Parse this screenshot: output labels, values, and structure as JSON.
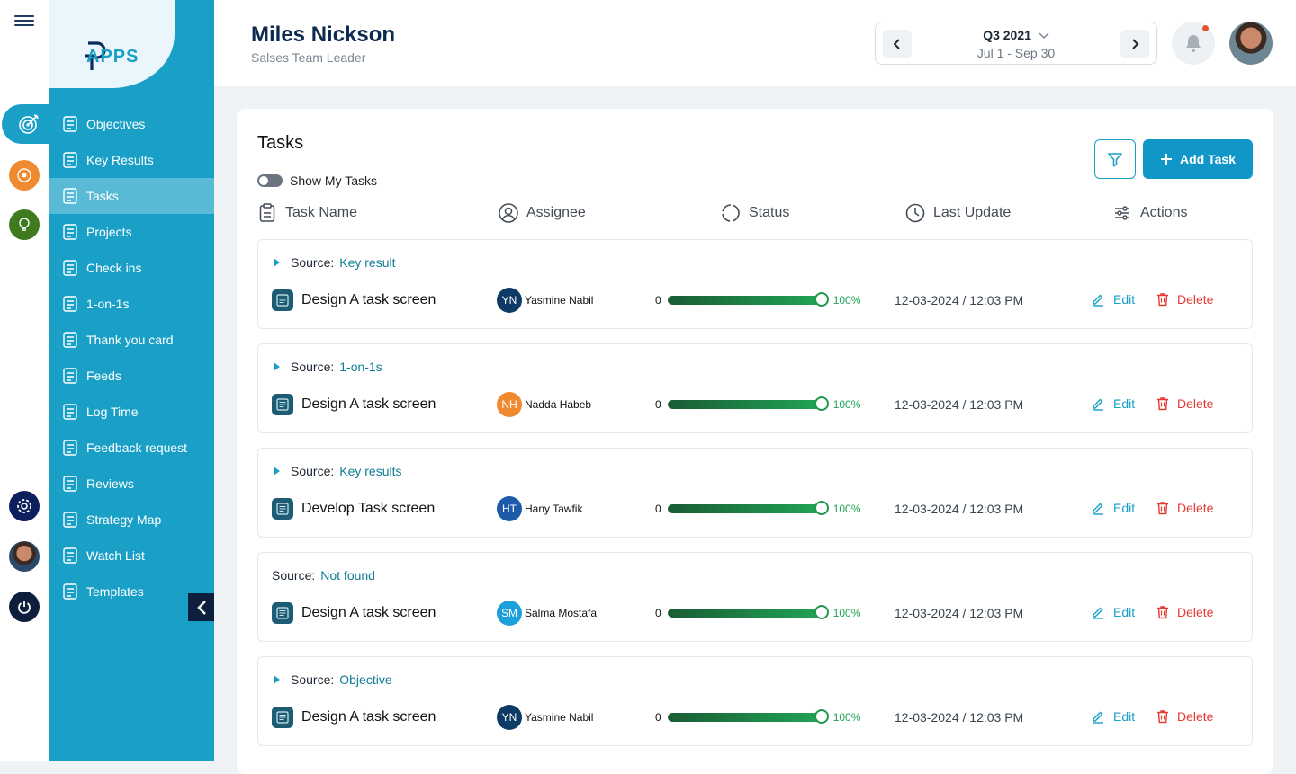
{
  "user": {
    "name": "Miles Nickson",
    "role": "Salses Team Leader"
  },
  "period": {
    "quarter": "Q3 2021",
    "range": "Jul 1 - Sep 30"
  },
  "brand": {
    "logo_text": "APPS",
    "accent": "#1aa0c7",
    "dark": "#0d2a4f"
  },
  "sidebar": {
    "items": [
      {
        "label": "Objectives",
        "icon": "clipboard-icon"
      },
      {
        "label": "Key Results",
        "icon": "key-results-icon"
      },
      {
        "label": "Tasks",
        "icon": "tasks-icon",
        "active": true
      },
      {
        "label": "Projects",
        "icon": "projects-icon"
      },
      {
        "label": "Check ins",
        "icon": "checkin-icon"
      },
      {
        "label": "1-on-1s",
        "icon": "chat-icon"
      },
      {
        "label": "Thank you card",
        "icon": "award-icon"
      },
      {
        "label": "Feeds",
        "icon": "feeds-icon"
      },
      {
        "label": "Log Time",
        "icon": "log-time-icon"
      },
      {
        "label": "Feedback request",
        "icon": "feedback-icon"
      },
      {
        "label": "Reviews",
        "icon": "reviews-icon"
      },
      {
        "label": "Strategy Map",
        "icon": "strategy-icon"
      },
      {
        "label": "Watch List",
        "icon": "eye-icon"
      },
      {
        "label": "Templates",
        "icon": "templates-icon"
      }
    ]
  },
  "tasks": {
    "title": "Tasks",
    "show_my_tasks": "Show My Tasks",
    "add_task": "Add Task",
    "columns": [
      "Task Name",
      "Assignee",
      "Status",
      "Last Update",
      "Actions"
    ],
    "source_label": "Source:",
    "edit_label": "Edit",
    "delete_label": "Delete",
    "progress_start": "0",
    "rows": [
      {
        "source": "Key result",
        "expandable": true,
        "name": "Design A task screen",
        "initials": "YN",
        "assignee": "Yasmine Nabil",
        "avatar_color": "#0d3b66",
        "progress": 100,
        "progress_label": "100%",
        "updated": "12-03-2024 / 12:03 PM"
      },
      {
        "source": "1-on-1s",
        "expandable": true,
        "name": "Design A task screen",
        "initials": "NH",
        "assignee": "Nadda Habeb",
        "avatar_color": "#f08a30",
        "progress": 100,
        "progress_label": "100%",
        "updated": "12-03-2024 / 12:03 PM"
      },
      {
        "source": "Key results",
        "expandable": true,
        "name": "Develop Task screen",
        "initials": "HT",
        "assignee": "Hany Tawfik",
        "avatar_color": "#1d5aa8",
        "progress": 100,
        "progress_label": "100%",
        "updated": "12-03-2024 / 12:03 PM"
      },
      {
        "source": "Not found",
        "expandable": false,
        "name": "Design A task screen",
        "initials": "SM",
        "assignee": "Salma Mostafa",
        "avatar_color": "#1ba0dc",
        "progress": 100,
        "progress_label": "100%",
        "updated": "12-03-2024 / 12:03 PM"
      },
      {
        "source": "Objective",
        "expandable": true,
        "name": "Design A task screen",
        "initials": "YN",
        "assignee": "Yasmine Nabil",
        "avatar_color": "#0d3b66",
        "progress": 100,
        "progress_label": "100%",
        "updated": "12-03-2024 / 12:03 PM"
      }
    ]
  }
}
